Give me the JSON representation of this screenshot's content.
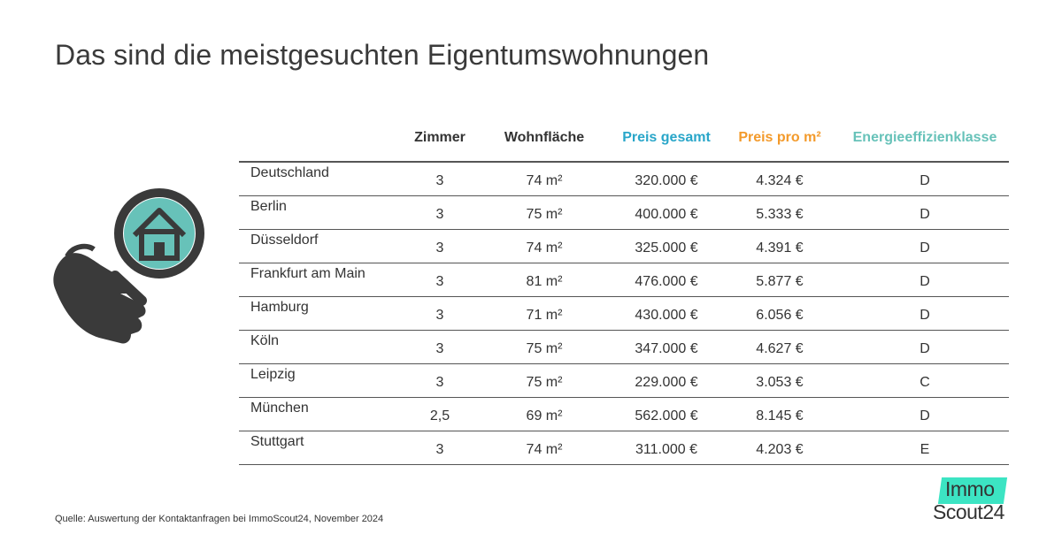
{
  "title": "Das sind die meistgesuchten Eigentumswohnungen",
  "chart_data": {
    "type": "table",
    "columns": [
      "",
      "Zimmer",
      "Wohnfläche",
      "Preis gesamt",
      "Preis pro m²",
      "Energieeffizienklasse"
    ],
    "header_colors": {
      "Preis gesamt": "#29a6c9",
      "Preis pro m²": "#f39a2b",
      "Energieeffizienklasse": "#67c2b9"
    },
    "rows": [
      [
        "Deutschland",
        "3",
        "74 m²",
        "320.000 €",
        "4.324 €",
        "D"
      ],
      [
        "Berlin",
        "3",
        "75 m²",
        "400.000 €",
        "5.333 €",
        "D"
      ],
      [
        "Düsseldorf",
        "3",
        "74 m²",
        "325.000 €",
        "4.391 €",
        "D"
      ],
      [
        "Frankfurt am Main",
        "3",
        "81 m²",
        "476.000 €",
        "5.877 €",
        "D"
      ],
      [
        "Hamburg",
        "3",
        "71 m²",
        "430.000 €",
        "6.056 €",
        "D"
      ],
      [
        "Köln",
        "3",
        "75 m²",
        "347.000 €",
        "4.627 €",
        "D"
      ],
      [
        "Leipzig",
        "3",
        "75 m²",
        "229.000 €",
        "3.053 €",
        "C"
      ],
      [
        "München",
        "2,5",
        "69 m²",
        "562.000 €",
        "8.145 €",
        "D"
      ],
      [
        "Stuttgart",
        "3",
        "74 m²",
        "311.000 €",
        "4.203 €",
        "E"
      ]
    ]
  },
  "illustration": {
    "icon": "hand-holding-magnifier-house-icon",
    "accent": "#67c2b9",
    "dark": "#3a3a3a"
  },
  "source": "Quelle: Auswertung der Kontaktanfragen bei ImmoScout24, November 2024",
  "logo": {
    "line1": "Immo",
    "line2": "Scout24",
    "accent": "#3ce4c3"
  }
}
